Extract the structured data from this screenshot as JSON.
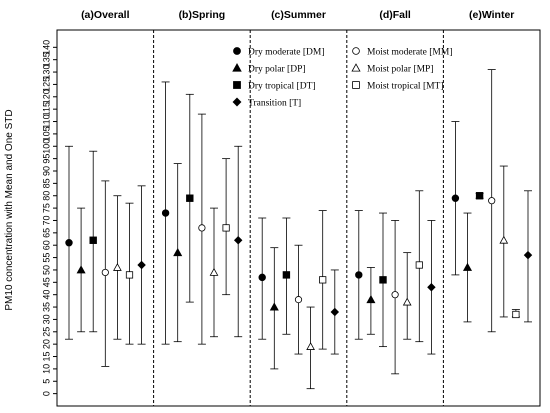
{
  "chart_data": {
    "type": "scatter",
    "title": "",
    "ylabel": "PM10 concentration with Mean and One STD",
    "ylim": [
      -5,
      147
    ],
    "yticks": [
      0,
      5,
      10,
      15,
      20,
      25,
      30,
      35,
      40,
      45,
      50,
      55,
      60,
      65,
      70,
      75,
      80,
      85,
      90,
      95,
      100,
      105,
      110,
      115,
      120,
      125,
      130,
      135,
      140
    ],
    "grid": false,
    "legend_position": "top-center",
    "panels": [
      "(a)Overall",
      "(b)Spring",
      "(c)Summer",
      "(d)Fall",
      "(e)Winter"
    ],
    "series": [
      {
        "name": "Dry moderate [DM]",
        "marker": "filled-circle",
        "mean": [
          61,
          73,
          47,
          48,
          79
        ],
        "low": [
          22,
          20,
          22,
          22,
          48
        ],
        "high": [
          100,
          126,
          71,
          74,
          110
        ]
      },
      {
        "name": "Dry polar [DP]",
        "marker": "filled-triangle",
        "mean": [
          50,
          57,
          35,
          38,
          51
        ],
        "low": [
          25,
          21,
          10,
          24,
          29
        ],
        "high": [
          75,
          93,
          59,
          51,
          73
        ]
      },
      {
        "name": "Dry tropical [DT]",
        "marker": "filled-square",
        "mean": [
          62,
          79,
          48,
          46,
          80
        ],
        "low": [
          25,
          37,
          24,
          19,
          79
        ],
        "high": [
          98,
          121,
          71,
          73,
          81
        ]
      },
      {
        "name": "Transition [T]",
        "marker": "filled-diamond",
        "mean": [
          52,
          62,
          33,
          43,
          56
        ],
        "low": [
          20,
          23,
          16,
          16,
          29
        ],
        "high": [
          84,
          100,
          50,
          70,
          82
        ]
      },
      {
        "name": "Moist moderate [MM]",
        "marker": "open-circle",
        "mean": [
          49,
          67,
          38,
          40,
          78
        ],
        "low": [
          11,
          20,
          16,
          8,
          25
        ],
        "high": [
          86,
          113,
          60,
          70,
          131
        ]
      },
      {
        "name": "Moist polar [MP]",
        "marker": "open-triangle",
        "mean": [
          51,
          49,
          19,
          37,
          62
        ],
        "low": [
          22,
          23,
          2,
          22,
          31
        ],
        "high": [
          80,
          75,
          35,
          57,
          92
        ]
      },
      {
        "name": "Moist tropical [MT]",
        "marker": "open-square",
        "mean": [
          48,
          67,
          46,
          52,
          32
        ],
        "low": [
          20,
          40,
          18,
          21,
          31
        ],
        "high": [
          77,
          95,
          74,
          82,
          34
        ]
      }
    ],
    "panel_order": {
      "(a)Overall": [
        "Dry moderate [DM]",
        "Dry polar [DP]",
        "Dry tropical [DT]",
        "Moist moderate [MM]",
        "Moist polar [MP]",
        "Moist tropical [MT]",
        "Transition [T]"
      ],
      "(b)Spring": [
        "Dry moderate [DM]",
        "Dry polar [DP]",
        "Dry tropical [DT]",
        "Moist moderate [MM]",
        "Moist polar [MP]",
        "Moist tropical [MT]",
        "Transition [T]"
      ],
      "(c)Summer": [
        "Dry moderate [DM]",
        "Dry polar [DP]",
        "Dry tropical [DT]",
        "Moist moderate [MM]",
        "Moist polar [MP]",
        "Moist tropical [MT]",
        "Transition [T]"
      ],
      "(d)Fall": [
        "Dry moderate [DM]",
        "Dry polar [DP]",
        "Dry tropical [DT]",
        "Moist moderate [MM]",
        "Moist polar [MP]",
        "Moist tropical [MT]",
        "Transition [T]"
      ],
      "(e)Winter": [
        "Dry moderate [DM]",
        "Dry polar [DP]",
        "Dry tropical [DT]",
        "Moist moderate [MM]",
        "Moist polar [MP]",
        "Moist tropical [MT]",
        "Transition [T]"
      ]
    },
    "legend_left": [
      "Dry moderate [DM]",
      "Dry polar [DP]",
      "Dry tropical [DT]",
      "Transition [T]"
    ],
    "legend_right": [
      "Moist moderate [MM]",
      "Moist polar [MP]",
      "Moist tropical [MT]"
    ],
    "colors": {
      "axis": "#000000",
      "marker": "#000000",
      "open_marker_fill": "#ffffff",
      "separator": "#000000"
    }
  }
}
